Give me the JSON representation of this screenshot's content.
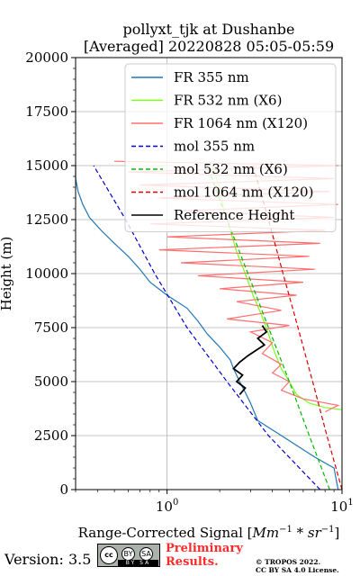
{
  "chart_data": {
    "type": "line",
    "title_line1": "pollyxt_tjk at Dushanbe",
    "title_line2": "[Averaged] 20220828 05:05-05:59",
    "xlabel_prefix": "Range-Corrected Signal [",
    "xlabel_unit": "Mm",
    "xlabel_exp1": "−1",
    "xlabel_mid": " * sr",
    "xlabel_exp2": "−1",
    "xlabel_suffix": "]",
    "ylabel": "Height (m)",
    "x_scale": "log",
    "xlim": [
      0.3,
      10
    ],
    "ylim": [
      0,
      20000
    ],
    "grid": true,
    "legend_position": "top-right",
    "x_ticks": [
      {
        "value": 1,
        "base": "10",
        "exp": "0"
      },
      {
        "value": 10,
        "base": "10",
        "exp": "1"
      }
    ],
    "y_ticks": [
      {
        "value": 0,
        "label": "0"
      },
      {
        "value": 2500,
        "label": "2500"
      },
      {
        "value": 5000,
        "label": "5000"
      },
      {
        "value": 7500,
        "label": "7500"
      },
      {
        "value": 10000,
        "label": "10000"
      },
      {
        "value": 12500,
        "label": "12500"
      },
      {
        "value": 15000,
        "label": "15000"
      },
      {
        "value": 17500,
        "label": "17500"
      },
      {
        "value": 20000,
        "label": "20000"
      }
    ],
    "series": [
      {
        "name": "FR 355 nm",
        "color": "#1f77b4",
        "style": "solid",
        "width": 1.2,
        "points": [
          [
            9.5,
            0
          ],
          [
            9.0,
            1000
          ],
          [
            7.0,
            1500
          ],
          [
            4.5,
            2500
          ],
          [
            3.3,
            3200
          ],
          [
            3.0,
            4000
          ],
          [
            2.8,
            4500
          ],
          [
            2.6,
            5000
          ],
          [
            2.4,
            5600
          ],
          [
            2.3,
            6000
          ],
          [
            2.0,
            6600
          ],
          [
            1.7,
            7200
          ],
          [
            1.5,
            7800
          ],
          [
            1.3,
            8400
          ],
          [
            1.0,
            9000
          ],
          [
            0.8,
            9600
          ],
          [
            0.7,
            10200
          ],
          [
            0.6,
            10800
          ],
          [
            0.5,
            11400
          ],
          [
            0.42,
            12000
          ],
          [
            0.36,
            12600
          ],
          [
            0.33,
            13200
          ],
          [
            0.31,
            13800
          ],
          [
            0.3,
            14400
          ],
          [
            0.3,
            15000
          ]
        ]
      },
      {
        "name": "FR 532 nm (X6)",
        "color": "#7dff1a",
        "style": "solid",
        "width": 1.2,
        "points": [
          [
            10.0,
            3700
          ],
          [
            8.0,
            3800
          ],
          [
            6.5,
            4000
          ],
          [
            5.5,
            4400
          ],
          [
            5.0,
            5000
          ],
          [
            4.5,
            5600
          ],
          [
            4.1,
            6400
          ],
          [
            3.8,
            7200
          ],
          [
            3.5,
            8000
          ],
          [
            3.1,
            9000
          ],
          [
            2.8,
            10000
          ],
          [
            2.5,
            11000
          ],
          [
            2.3,
            12000
          ],
          [
            2.1,
            13000
          ],
          [
            2.0,
            14000
          ],
          [
            1.8,
            15000
          ]
        ]
      },
      {
        "name": "FR 1064 nm (X120)",
        "color": "#ff6f6f",
        "style": "solid",
        "width": 1.2,
        "points": [
          [
            8.0,
            3600
          ],
          [
            9.5,
            3900
          ],
          [
            6.0,
            4200
          ],
          [
            4.5,
            4600
          ],
          [
            5.0,
            5000
          ],
          [
            4.0,
            5400
          ],
          [
            4.5,
            5800
          ],
          [
            3.5,
            6300
          ],
          [
            4.0,
            6800
          ],
          [
            3.0,
            7300
          ],
          [
            5.0,
            7600
          ],
          [
            2.2,
            7900
          ],
          [
            4.5,
            8300
          ],
          [
            2.5,
            8700
          ],
          [
            5.5,
            9000
          ],
          [
            2.0,
            9300
          ],
          [
            6.0,
            9600
          ],
          [
            1.5,
            9900
          ],
          [
            7.0,
            10200
          ],
          [
            1.2,
            10500
          ],
          [
            6.5,
            10800
          ],
          [
            0.9,
            11100
          ],
          [
            7.5,
            11400
          ],
          [
            1.0,
            11700
          ],
          [
            8.0,
            12000
          ],
          [
            0.8,
            12300
          ],
          [
            9.0,
            12600
          ],
          [
            1.2,
            12900
          ],
          [
            9.5,
            13200
          ],
          [
            0.9,
            13500
          ],
          [
            8.5,
            13800
          ],
          [
            0.7,
            14100
          ],
          [
            9.0,
            14400
          ],
          [
            0.6,
            14700
          ],
          [
            9.5,
            15000
          ],
          [
            0.5,
            15200
          ]
        ]
      },
      {
        "name": "mol 355 nm",
        "color": "#0000cc",
        "style": "dashed",
        "width": 1.2,
        "points": [
          [
            7.5,
            0
          ],
          [
            3.8,
            2500
          ],
          [
            2.2,
            5000
          ],
          [
            1.3,
            7500
          ],
          [
            0.85,
            10000
          ],
          [
            0.58,
            12500
          ],
          [
            0.38,
            15000
          ]
        ]
      },
      {
        "name": "mol 532 nm (X6)",
        "color": "#00bb00",
        "style": "dashed",
        "width": 1.2,
        "points": [
          [
            8.5,
            0
          ],
          [
            6.5,
            2500
          ],
          [
            5.0,
            5000
          ],
          [
            3.8,
            7500
          ],
          [
            2.9,
            10000
          ],
          [
            2.2,
            12500
          ],
          [
            1.7,
            15000
          ]
        ]
      },
      {
        "name": "mol 1064 nm (X120)",
        "color": "#dd0000",
        "style": "dashed",
        "width": 1.2,
        "points": [
          [
            10.0,
            0
          ],
          [
            8.2,
            2500
          ],
          [
            6.8,
            5000
          ],
          [
            5.6,
            7500
          ],
          [
            4.6,
            10000
          ],
          [
            3.8,
            12500
          ],
          [
            3.1,
            15000
          ]
        ]
      },
      {
        "name": "Reference Height",
        "color": "#000000",
        "style": "solid",
        "width": 1.8,
        "points": [
          [
            2.6,
            4400
          ],
          [
            2.8,
            4700
          ],
          [
            2.5,
            5000
          ],
          [
            2.7,
            5300
          ],
          [
            2.4,
            5600
          ],
          [
            2.6,
            5900
          ],
          [
            2.9,
            6200
          ],
          [
            3.3,
            6500
          ],
          [
            3.6,
            6700
          ],
          [
            3.3,
            7000
          ],
          [
            3.7,
            7300
          ],
          [
            3.5,
            7600
          ]
        ]
      }
    ]
  },
  "footer": {
    "version": "Version: 3.5",
    "license_badge": {
      "main": "cc",
      "by": "BY",
      "sa": "SA",
      "strip": "BY SA"
    },
    "preliminary_line1": "Preliminary",
    "preliminary_line2": "Results.",
    "copyright_line1": "© TROPOS 2022.",
    "copyright_line2": "CC BY SA 4.0 License."
  }
}
